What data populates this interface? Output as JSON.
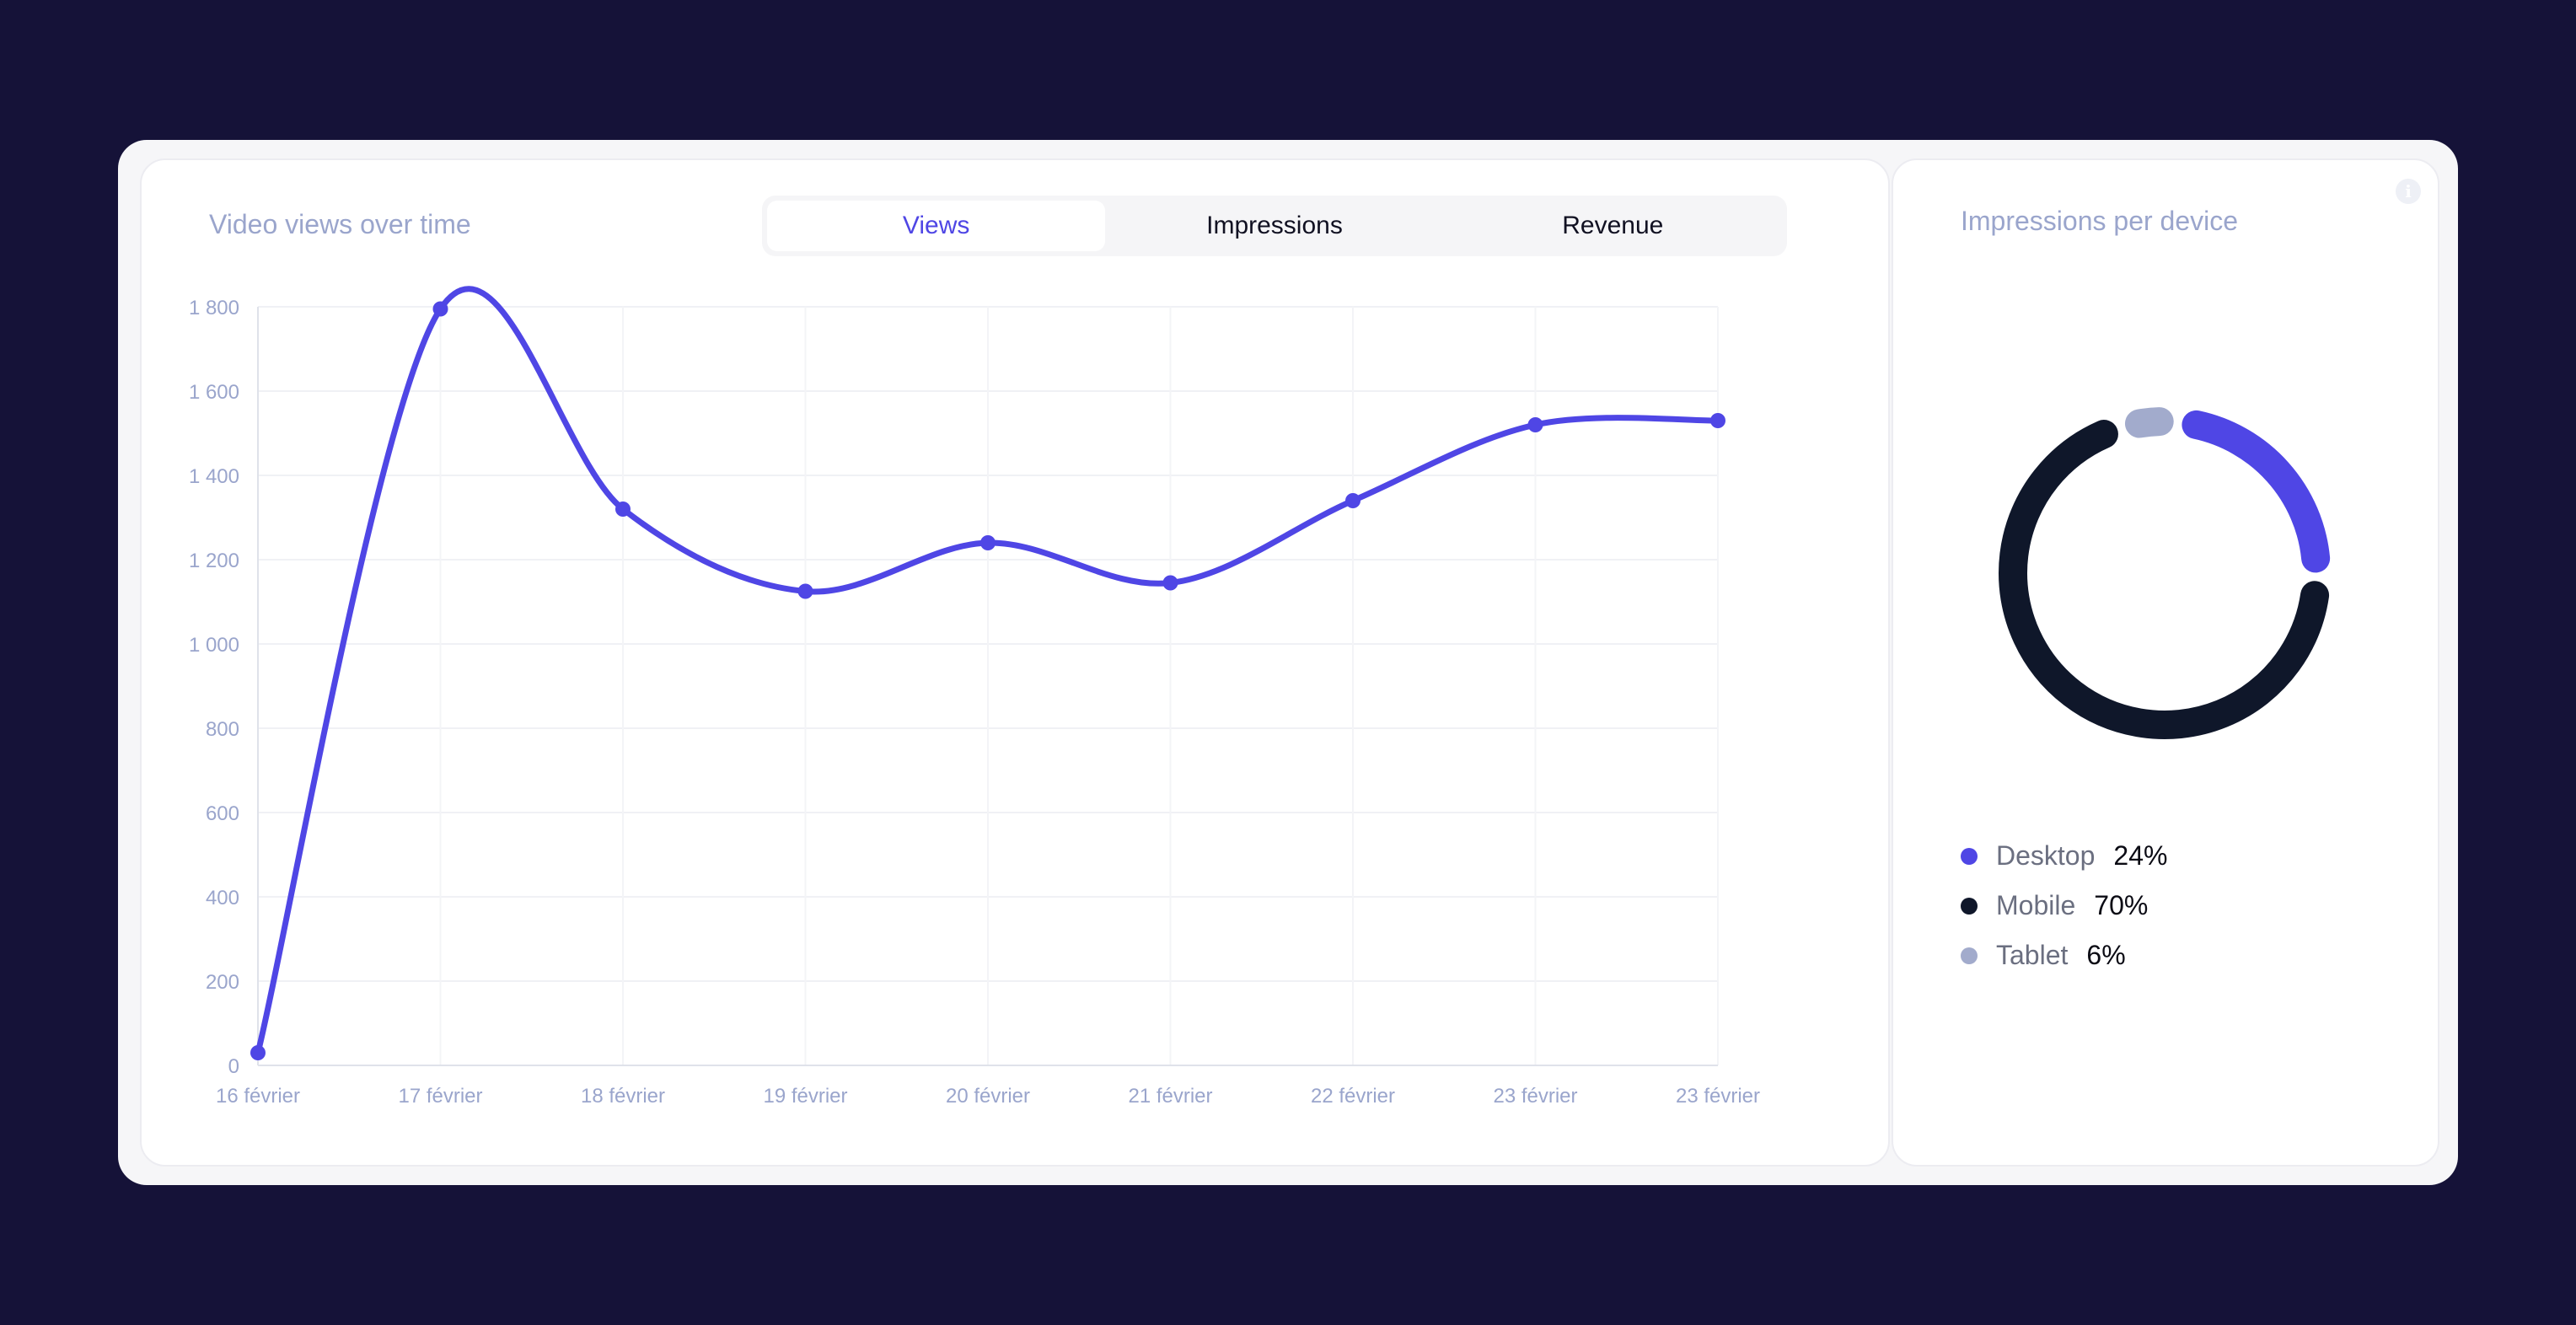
{
  "main_card": {
    "title": "Video views over time",
    "tabs": [
      {
        "label": "Views",
        "active": true
      },
      {
        "label": "Impressions",
        "active": false
      },
      {
        "label": "Revenue",
        "active": false
      }
    ]
  },
  "side_card": {
    "title": "Impressions per device",
    "info_icon": "info-icon"
  },
  "chart_data": [
    {
      "type": "line",
      "title": "Video views over time",
      "x": [
        "16 février",
        "17 février",
        "18 février",
        "19 février",
        "20 février",
        "21 février",
        "22 février",
        "23 février",
        "23 février"
      ],
      "series": [
        {
          "values": [
            30,
            1795,
            1320,
            1125,
            1240,
            1145,
            1340,
            1520,
            1530
          ]
        }
      ],
      "y_ticks": [
        0,
        200,
        400,
        600,
        800,
        1000,
        1200,
        1400,
        1600,
        1800
      ],
      "y_tick_labels": [
        "0",
        "200",
        "400",
        "600",
        "800",
        "1 000",
        "1 200",
        "1 400",
        "1 600",
        "1 800"
      ],
      "ylim": [
        0,
        1800
      ],
      "grid": true,
      "color": "#4f46e5"
    },
    {
      "type": "pie",
      "style": "donut",
      "title": "Impressions per device",
      "slices": [
        {
          "label": "Desktop",
          "value": 24,
          "display": "24%",
          "color": "#4f46e5"
        },
        {
          "label": "Mobile",
          "value": 70,
          "display": "70%",
          "color": "#0f172a"
        },
        {
          "label": "Tablet",
          "value": 6,
          "display": "6%",
          "color": "#a2abcc"
        }
      ],
      "legend": "bottom"
    }
  ]
}
